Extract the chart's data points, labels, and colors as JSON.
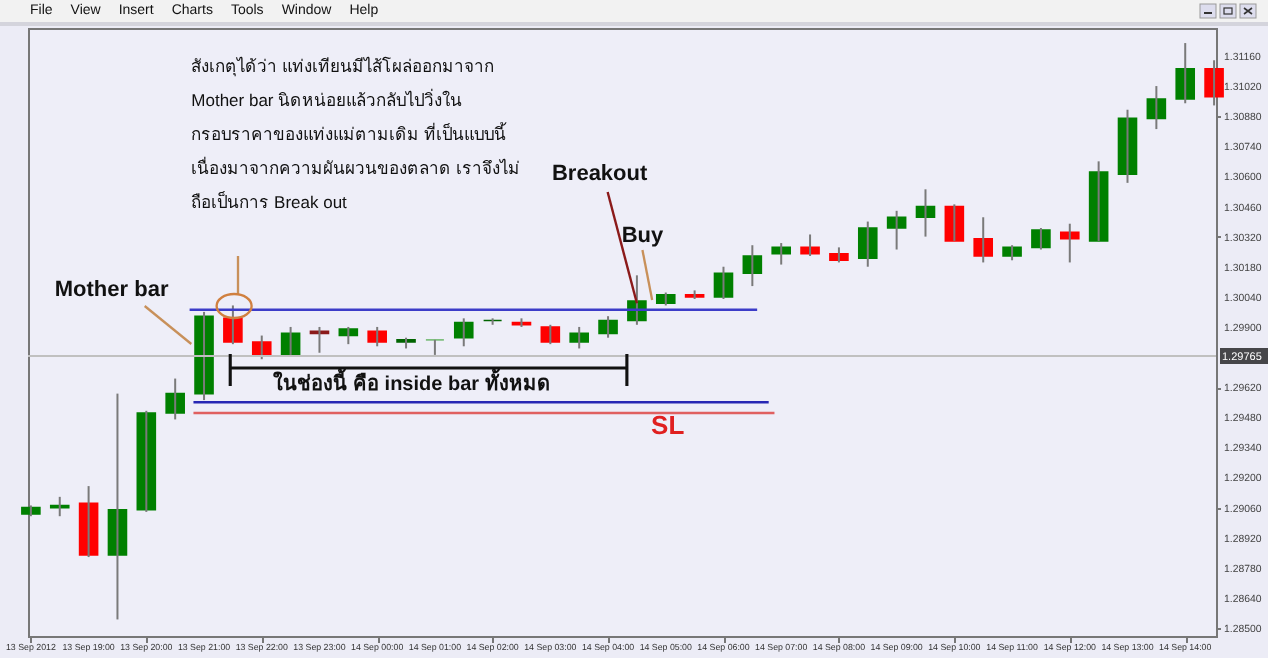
{
  "chart_data": {
    "type": "candlestick",
    "x": [
      "2012-09-13T18:00",
      "2012-09-13T18:30",
      "2012-09-13T19:00",
      "2012-09-13T19:30",
      "2012-09-13T20:00",
      "2012-09-13T20:30",
      "2012-09-13T21:00",
      "2012-09-13T21:30",
      "2012-09-13T22:00",
      "2012-09-13T22:30",
      "2012-09-13T23:00",
      "2012-09-13T23:30",
      "2012-09-14T00:00",
      "2012-09-14T00:30",
      "2012-09-14T01:00",
      "2012-09-14T01:30",
      "2012-09-14T02:00",
      "2012-09-14T02:30",
      "2012-09-14T03:00",
      "2012-09-14T03:30",
      "2012-09-14T04:00",
      "2012-09-14T04:30",
      "2012-09-14T05:00",
      "2012-09-14T05:30",
      "2012-09-14T06:00",
      "2012-09-14T06:30",
      "2012-09-14T07:00",
      "2012-09-14T07:30",
      "2012-09-14T08:00",
      "2012-09-14T08:30",
      "2012-09-14T09:00",
      "2012-09-14T09:30",
      "2012-09-14T10:00",
      "2012-09-14T10:30",
      "2012-09-14T11:00",
      "2012-09-14T11:30",
      "2012-09-14T12:00",
      "2012-09-14T12:30",
      "2012-09-14T13:00",
      "2012-09-14T13:30",
      "2012-09-14T14:00",
      "2012-09-14T14:30"
    ],
    "ohlc": [
      [
        1.2903,
        1.2907,
        1.2902,
        1.2906
      ],
      [
        1.2906,
        1.2911,
        1.2902,
        1.2907
      ],
      [
        1.2908,
        1.2916,
        1.2883,
        1.2884
      ],
      [
        1.2884,
        1.2959,
        1.2854,
        1.2905
      ],
      [
        1.2905,
        1.2951,
        1.2904,
        1.295
      ],
      [
        1.295,
        1.2966,
        1.2947,
        1.2959
      ],
      [
        1.2959,
        1.2997,
        1.2956,
        1.2995
      ],
      [
        1.2994,
        1.3,
        1.2982,
        1.2983
      ],
      [
        1.2983,
        1.2986,
        1.2975,
        1.2977
      ],
      [
        1.2977,
        1.299,
        1.2977,
        1.2987
      ],
      [
        1.2988,
        1.299,
        1.2978,
        1.2987
      ],
      [
        1.2986,
        1.299,
        1.2982,
        1.2989
      ],
      [
        1.2988,
        1.299,
        1.2981,
        1.2983
      ],
      [
        1.2983,
        1.2985,
        1.298,
        1.2984
      ],
      [
        1.2984,
        1.2984,
        1.2977,
        1.2984
      ],
      [
        1.2985,
        1.2994,
        1.2981,
        1.2992
      ],
      [
        1.2993,
        1.2994,
        1.2991,
        1.2993
      ],
      [
        1.2992,
        1.2994,
        1.299,
        1.2991
      ],
      [
        1.299,
        1.2991,
        1.2982,
        1.2983
      ],
      [
        1.2983,
        1.299,
        1.298,
        1.2987
      ],
      [
        1.2987,
        1.2995,
        1.2985,
        1.2993
      ],
      [
        1.2993,
        1.3014,
        1.2991,
        1.3002
      ],
      [
        1.3001,
        1.3006,
        1.3,
        1.3005
      ],
      [
        1.3005,
        1.3007,
        1.3003,
        1.3004
      ],
      [
        1.3004,
        1.3018,
        1.3003,
        1.3015
      ],
      [
        1.3015,
        1.3028,
        1.3009,
        1.3023
      ],
      [
        1.3024,
        1.3029,
        1.3019,
        1.3027
      ],
      [
        1.3027,
        1.3033,
        1.3023,
        1.3024
      ],
      [
        1.3024,
        1.3027,
        1.302,
        1.3021
      ],
      [
        1.3022,
        1.3039,
        1.3018,
        1.3036
      ],
      [
        1.3036,
        1.3044,
        1.3026,
        1.3041
      ],
      [
        1.3041,
        1.3054,
        1.3032,
        1.3046
      ],
      [
        1.3046,
        1.3047,
        1.303,
        1.303
      ],
      [
        1.3031,
        1.3041,
        1.302,
        1.3023
      ],
      [
        1.3023,
        1.3028,
        1.3021,
        1.3027
      ],
      [
        1.3027,
        1.3036,
        1.3026,
        1.3035
      ],
      [
        1.3034,
        1.3038,
        1.302,
        1.3031
      ],
      [
        1.303,
        1.3067,
        1.303,
        1.3062
      ],
      [
        1.3061,
        1.3091,
        1.3057,
        1.3087
      ],
      [
        1.3087,
        1.3102,
        1.3082,
        1.3096
      ],
      [
        1.3096,
        1.3122,
        1.3094,
        1.311
      ],
      [
        1.311,
        1.3114,
        1.3093,
        1.3097
      ]
    ],
    "colors": [
      "#008000",
      "#008000",
      "#ff0000",
      "#008000",
      "#008000",
      "#008000",
      "#008000",
      "#ff0000",
      "#ff0000",
      "#008000",
      "#8b1a1a",
      "#008000",
      "#ff0000",
      "#006400",
      "#7fbf7f",
      "#008000",
      "#006400",
      "#ff0000",
      "#ff0000",
      "#008000",
      "#008000",
      "#008000",
      "#008000",
      "#ff0000",
      "#008000",
      "#008000",
      "#008000",
      "#ff0000",
      "#ff0000",
      "#008000",
      "#008000",
      "#008000",
      "#ff0000",
      "#ff0000",
      "#008000",
      "#008000",
      "#ff0000",
      "#008000",
      "#008000",
      "#008000",
      "#008000",
      "#ff0000"
    ],
    "series": [
      {
        "type": "line",
        "color": "#3c3cc8",
        "x": [
          "2012-09-13T20:45",
          "2012-09-14T06:35"
        ],
        "values": [
          1.2998,
          1.2998
        ]
      },
      {
        "type": "line",
        "color": "#2828b4",
        "x": [
          "2012-09-13T20:49",
          "2012-09-14T06:47"
        ],
        "values": [
          1.2955,
          1.2955
        ]
      },
      {
        "type": "line",
        "color": "#e06060",
        "x": [
          "2012-09-13T20:49",
          "2012-09-14T06:53"
        ],
        "values": [
          1.295,
          1.295
        ]
      }
    ],
    "xlim": [
      "2012-09-13T17:57",
      "2012-09-14T14:32"
    ],
    "xticks": [
      {
        "value": "2012-09-13T18:00",
        "label": "13 Sep 2012"
      },
      {
        "value": "2012-09-13T19:00",
        "label": "13 Sep 19:00"
      },
      {
        "value": "2012-09-13T20:00",
        "label": "13 Sep 20:00"
      },
      {
        "value": "2012-09-13T21:00",
        "label": "13 Sep 21:00"
      },
      {
        "value": "2012-09-13T22:00",
        "label": "13 Sep 22:00"
      },
      {
        "value": "2012-09-13T23:00",
        "label": "13 Sep 23:00"
      },
      {
        "value": "2012-09-14T00:00",
        "label": "14 Sep 00:00"
      },
      {
        "value": "2012-09-14T01:00",
        "label": "14 Sep 01:00"
      },
      {
        "value": "2012-09-14T02:00",
        "label": "14 Sep 02:00"
      },
      {
        "value": "2012-09-14T03:00",
        "label": "14 Sep 03:00"
      },
      {
        "value": "2012-09-14T04:00",
        "label": "14 Sep 04:00"
      },
      {
        "value": "2012-09-14T05:00",
        "label": "14 Sep 05:00"
      },
      {
        "value": "2012-09-14T06:00",
        "label": "14 Sep 06:00"
      },
      {
        "value": "2012-09-14T07:00",
        "label": "14 Sep 07:00"
      },
      {
        "value": "2012-09-14T08:00",
        "label": "14 Sep 08:00"
      },
      {
        "value": "2012-09-14T09:00",
        "label": "14 Sep 09:00"
      },
      {
        "value": "2012-09-14T10:00",
        "label": "14 Sep 10:00"
      },
      {
        "value": "2012-09-14T11:00",
        "label": "14 Sep 11:00"
      },
      {
        "value": "2012-09-14T12:00",
        "label": "14 Sep 12:00"
      },
      {
        "value": "2012-09-14T13:00",
        "label": "14 Sep 13:00"
      },
      {
        "value": "2012-09-14T14:00",
        "label": "14 Sep 14:00"
      }
    ],
    "ylim": [
      1.28463,
      1.3129
    ],
    "yticks": [
      {
        "value": 1.285,
        "label": "1.28500"
      },
      {
        "value": 1.2864,
        "label": "1.28640"
      },
      {
        "value": 1.2878,
        "label": "1.28780"
      },
      {
        "value": 1.2892,
        "label": "1.28920"
      },
      {
        "value": 1.2906,
        "label": "1.29060"
      },
      {
        "value": 1.292,
        "label": "1.29200"
      },
      {
        "value": 1.2934,
        "label": "1.29340"
      },
      {
        "value": 1.2948,
        "label": "1.29480"
      },
      {
        "value": 1.2962,
        "label": "1.29620"
      },
      {
        "value": 1.299,
        "label": "1.29900"
      },
      {
        "value": 1.3004,
        "label": "1.30040"
      },
      {
        "value": 1.3018,
        "label": "1.30180"
      },
      {
        "value": 1.3032,
        "label": "1.30320"
      },
      {
        "value": 1.3046,
        "label": "1.30460"
      },
      {
        "value": 1.306,
        "label": "1.30600"
      },
      {
        "value": 1.3074,
        "label": "1.30740"
      },
      {
        "value": 1.3088,
        "label": "1.30880"
      },
      {
        "value": 1.3102,
        "label": "1.31020"
      },
      {
        "value": 1.3116,
        "label": "1.31160"
      }
    ],
    "ref_lines": [
      {
        "axis": "y",
        "value": 1.29765,
        "label": "1.29765",
        "color": "#c0c0c0"
      }
    ],
    "annotations": [
      "สังเกตุได้ว่า แท่งเทียนมีไส้โผล่ออกมาจาก\nMother bar นิดหน่อยแล้วกลับไปวิ่งใน\nกรอบราคาของแท่งแม่ตามเดิม ที่เป็นแบบนี้\nเนื่องมาจากความผันผวนของตลาด เราจึงไม่\nถือเป็นการ Break out",
      "File",
      "View",
      "Insert",
      "Charts",
      "Tools",
      "Window",
      "Help",
      "Mother bar",
      {
        "text": "Breakout",
        "x": "2012-09-14T04:30",
        "y": 1.3001
      },
      "Buy",
      "ในช่องนี้ คือ inside bar ทั้งหมด",
      "SL"
    ]
  }
}
